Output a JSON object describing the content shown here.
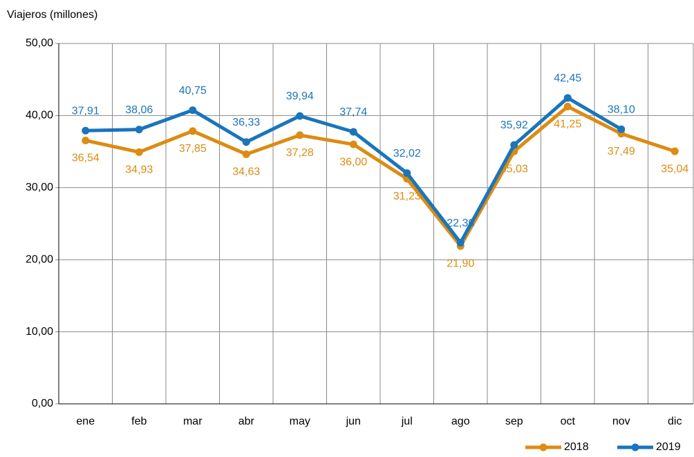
{
  "chart_data": {
    "type": "line",
    "y_label": "Viajeros (millones)",
    "categories": [
      "ene",
      "feb",
      "mar",
      "abr",
      "may",
      "jun",
      "jul",
      "ago",
      "sep",
      "oct",
      "nov",
      "dic"
    ],
    "series": [
      {
        "name": "2018",
        "color": "#dd8b11",
        "values": [
          36.54,
          34.93,
          37.85,
          34.63,
          37.28,
          36.0,
          31.23,
          21.9,
          35.03,
          41.25,
          37.49,
          35.04
        ],
        "value_labels": [
          "36,54",
          "34,93",
          "37,85",
          "34,63",
          "37,28",
          "36,00",
          "31,23",
          "21,90",
          "35,03",
          "41,25",
          "37,49",
          "35,04"
        ]
      },
      {
        "name": "2019",
        "color": "#1a75bc",
        "values": [
          37.91,
          38.06,
          40.75,
          36.33,
          39.94,
          37.74,
          32.02,
          22.36,
          35.92,
          42.45,
          38.1,
          null
        ],
        "value_labels": [
          "37,91",
          "38,06",
          "40,75",
          "36,33",
          "39,94",
          "37,74",
          "32,02",
          "22,36",
          "35,92",
          "42,45",
          "38,10",
          null
        ]
      }
    ],
    "ylim": [
      0,
      50
    ],
    "yticks": [
      {
        "value": 0,
        "label": "0,00"
      },
      {
        "value": 10,
        "label": "10,00"
      },
      {
        "value": 20,
        "label": "20,00"
      },
      {
        "value": 30,
        "label": "30,00"
      },
      {
        "value": 40,
        "label": "40,00"
      },
      {
        "value": 50,
        "label": "50,00"
      }
    ],
    "grid": true,
    "legend": "bottom-right"
  }
}
